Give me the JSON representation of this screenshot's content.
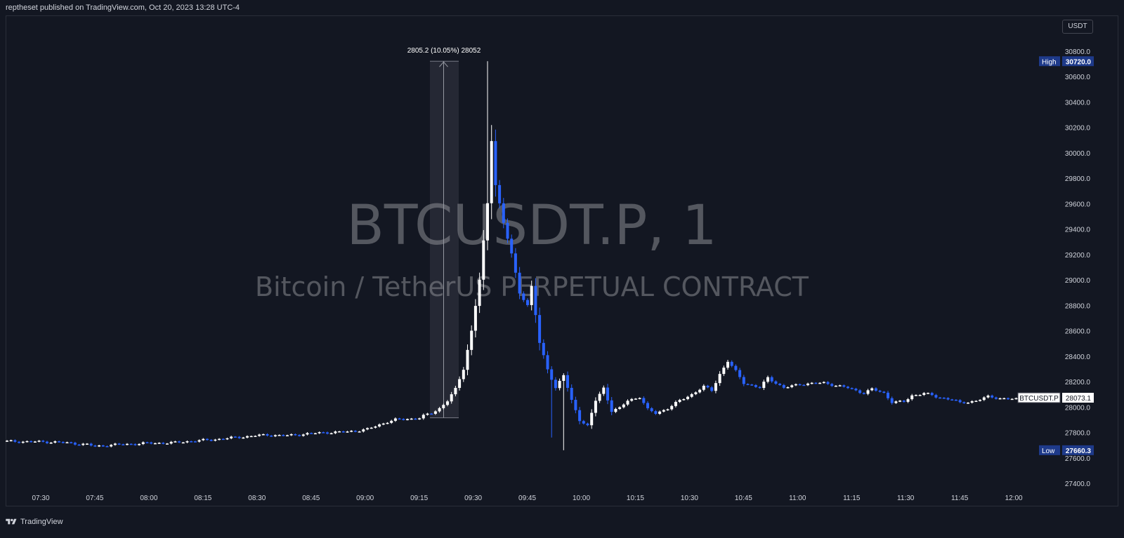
{
  "header": {
    "attribution": "reptheset published on TradingView.com, Oct 20, 2023 13:28 UTC-4"
  },
  "toolbar": {
    "currency": "USDT"
  },
  "watermark": {
    "symbol": "BTCUSDT.P, 1",
    "description": "Bitcoin / TetherUS PERPETUAL CONTRACT"
  },
  "measure_label": "2805.2 (10.05%) 28052",
  "footer": {
    "brand": "TradingView"
  },
  "colors": {
    "background": "#131722",
    "up": "#ffffff",
    "down": "#2962ff",
    "text": "#d1d4dc",
    "badge": "#1e3a8a"
  },
  "chart_data": {
    "type": "candlestick",
    "title": "",
    "xlabel": "",
    "ylabel": "",
    "x_ticks": [
      "07:30",
      "07:45",
      "08:00",
      "08:15",
      "08:30",
      "08:45",
      "09:00",
      "09:15",
      "09:30",
      "09:45",
      "10:00",
      "10:15",
      "10:30",
      "10:45",
      "11:00",
      "11:15",
      "11:30",
      "11:45",
      "12:00"
    ],
    "y_ticks": [
      27400,
      27600,
      27800,
      28000,
      28200,
      28400,
      28600,
      28800,
      29000,
      29200,
      29400,
      29600,
      29800,
      30000,
      30200,
      30400,
      30600,
      30800
    ],
    "ylim": [
      27300,
      30900
    ],
    "high_label": "High",
    "high_value": "30720.0",
    "low_label": "Low",
    "low_value": "27660.3",
    "last_symbol": "BTCUSDT.P",
    "last_value": "28073.1",
    "grid": false,
    "measure": {
      "from": 27915,
      "to": 30720,
      "change": 2805.2,
      "pct": 10.05
    },
    "candle_path": [
      [
        0,
        27730
      ],
      [
        12,
        27725
      ],
      [
        20,
        27705
      ],
      [
        22,
        27690
      ],
      [
        25,
        27700
      ],
      [
        35,
        27715
      ],
      [
        42,
        27720
      ],
      [
        45,
        27730
      ],
      [
        50,
        27740
      ],
      [
        57,
        27760
      ],
      [
        62,
        27775
      ],
      [
        65,
        27780
      ],
      [
        70,
        27775
      ],
      [
        75,
        27790
      ],
      [
        80,
        27800
      ],
      [
        85,
        27805
      ],
      [
        90,
        27825
      ],
      [
        93,
        27860
      ],
      [
        95,
        27885
      ],
      [
        97,
        27900
      ],
      [
        100,
        27905
      ],
      [
        103,
        27915
      ],
      [
        104,
        27930
      ],
      [
        106,
        27950
      ],
      [
        108,
        27990
      ],
      [
        110,
        28050
      ],
      [
        112,
        28140
      ],
      [
        114,
        28300
      ],
      [
        116,
        28600
      ],
      [
        118,
        29000
      ],
      [
        120,
        29600
      ],
      [
        121,
        30100
      ],
      [
        122,
        29750
      ],
      [
        124,
        29450
      ],
      [
        126,
        29200
      ],
      [
        128,
        28900
      ],
      [
        130,
        28800
      ],
      [
        131,
        28950
      ],
      [
        133,
        28500
      ],
      [
        135,
        28300
      ],
      [
        137,
        28150
      ],
      [
        139,
        28250
      ],
      [
        141,
        28050
      ],
      [
        143,
        27900
      ],
      [
        145,
        27850
      ],
      [
        147,
        28050
      ],
      [
        149,
        28150
      ],
      [
        151,
        27970
      ],
      [
        153,
        27990
      ],
      [
        155,
        28050
      ],
      [
        158,
        28080
      ],
      [
        160,
        27980
      ],
      [
        162,
        27950
      ],
      [
        165,
        27990
      ],
      [
        168,
        28050
      ],
      [
        171,
        28100
      ],
      [
        174,
        28160
      ],
      [
        176,
        28130
      ],
      [
        178,
        28260
      ],
      [
        180,
        28360
      ],
      [
        182,
        28280
      ],
      [
        184,
        28190
      ],
      [
        188,
        28150
      ],
      [
        190,
        28230
      ],
      [
        194,
        28150
      ],
      [
        198,
        28180
      ],
      [
        204,
        28190
      ],
      [
        210,
        28150
      ],
      [
        214,
        28110
      ],
      [
        216,
        28140
      ],
      [
        219,
        28110
      ],
      [
        221,
        28040
      ],
      [
        224,
        28040
      ],
      [
        226,
        28090
      ],
      [
        229,
        28110
      ],
      [
        232,
        28080
      ],
      [
        236,
        28060
      ],
      [
        238,
        28030
      ],
      [
        242,
        28050
      ],
      [
        245,
        28080
      ],
      [
        248,
        28070
      ],
      [
        252,
        28060
      ],
      [
        254,
        28073
      ]
    ],
    "highlight_wicks": [
      [
        120,
        30720
      ],
      [
        121,
        30200
      ],
      [
        139,
        27660
      ],
      [
        136,
        27760
      ]
    ]
  }
}
